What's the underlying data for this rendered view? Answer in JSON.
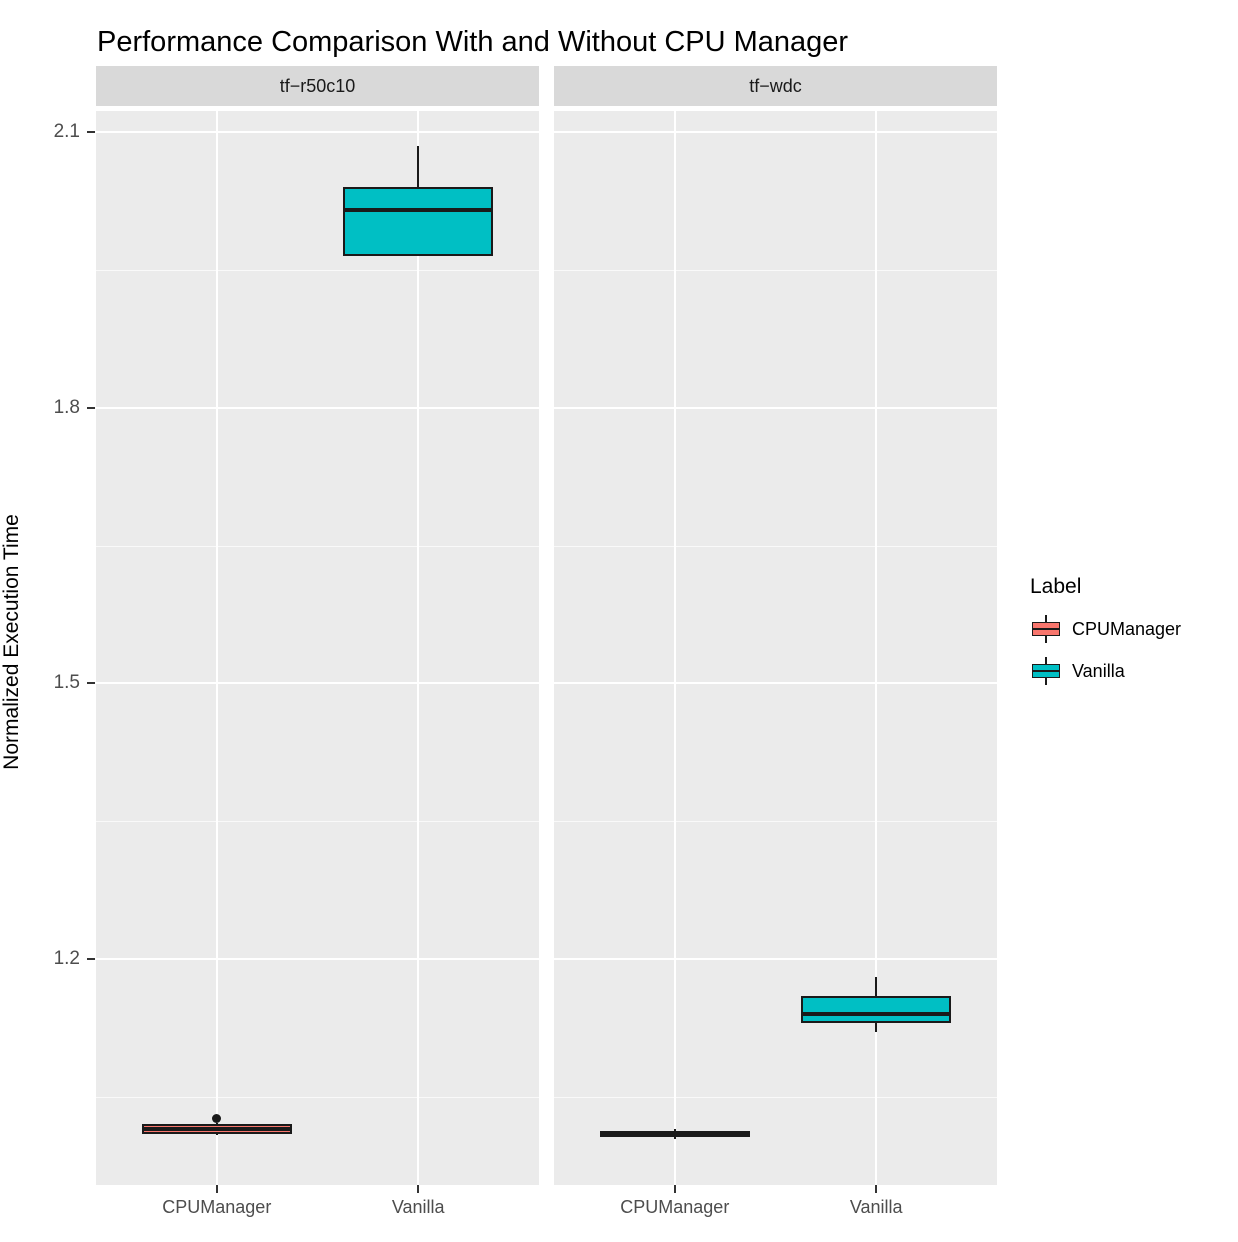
{
  "title": "Performance Comparison With and Without CPU Manager",
  "ylabel": "Normalized Execution Time",
  "legend": {
    "title": "Label",
    "entries": [
      {
        "label": "CPUManager",
        "color": "#F8766D"
      },
      {
        "label": "Vanilla",
        "color": "#00BFC4"
      }
    ]
  },
  "chart_data": {
    "type": "boxplot",
    "title": "Performance Comparison With and Without CPU Manager",
    "xlabel": "",
    "ylabel": "Normalized Execution Time",
    "ylim": [
      0.954,
      2.123
    ],
    "yticks": [
      1.2,
      1.5,
      1.8,
      2.1
    ],
    "yticks_minor": [
      1.05,
      1.35,
      1.65,
      1.95
    ],
    "x_categories": [
      "CPUManager",
      "Vanilla"
    ],
    "grid": true,
    "legend_position": "right",
    "panel_background": "#ebebeb",
    "strip_background": "#d9d9d9",
    "facets": [
      {
        "name": "tf−r50c10",
        "boxes": [
          {
            "category": "CPUManager",
            "series": "CPUManager",
            "color": "#F8766D",
            "whisker_low": 1.008,
            "q1": 1.01,
            "median": 1.015,
            "q3": 1.02,
            "whisker_high": 1.022,
            "outliers": [
              1.026
            ]
          },
          {
            "category": "Vanilla",
            "series": "Vanilla",
            "color": "#00BFC4",
            "whisker_low": 1.965,
            "q1": 1.965,
            "median": 2.015,
            "q3": 2.04,
            "whisker_high": 2.085,
            "outliers": []
          }
        ]
      },
      {
        "name": "tf−wdc",
        "boxes": [
          {
            "category": "CPUManager",
            "series": "CPUManager",
            "color": "#F8766D",
            "whisker_low": 1.004,
            "q1": 1.006,
            "median": 1.01,
            "q3": 1.013,
            "whisker_high": 1.015,
            "outliers": []
          },
          {
            "category": "Vanilla",
            "series": "Vanilla",
            "color": "#00BFC4",
            "whisker_low": 1.12,
            "q1": 1.13,
            "median": 1.14,
            "q3": 1.16,
            "whisker_high": 1.18,
            "outliers": []
          }
        ]
      }
    ]
  }
}
